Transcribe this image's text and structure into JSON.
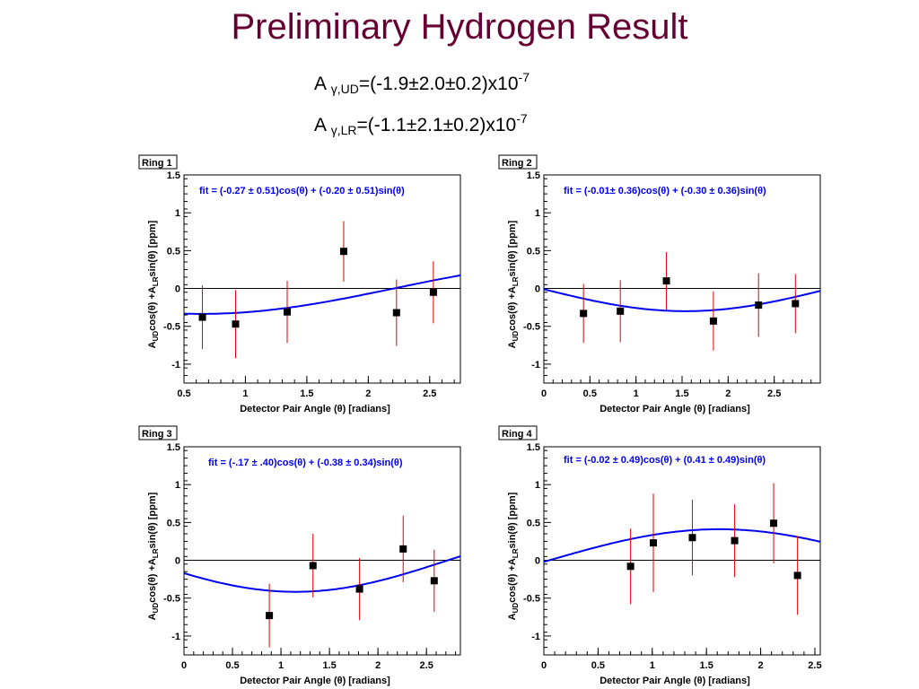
{
  "slide": {
    "title": "Preliminary Hydrogen Result",
    "results": [
      {
        "prefix": "A ",
        "sub": "γ,UD",
        "value": "=(-1.9±2.0±0.2)x10",
        "exp": "-7"
      },
      {
        "prefix": "A ",
        "sub": "γ,LR",
        "value": "=(-1.1±2.1±0.2)x10",
        "exp": "-7"
      }
    ]
  },
  "colors": {
    "points": "#000000",
    "error_bars": "#e00000",
    "fit_curve": "#0000ee",
    "fit_label": "#0000ee",
    "zero_line": "#000000"
  },
  "chart_data": [
    {
      "type": "scatter",
      "panel_label": "Ring 1",
      "fit_label": "fit = (-0.27 ± 0.51)cos(θ) + (-0.20 ± 0.51)sin(θ)",
      "fit": {
        "a": -0.27,
        "b": -0.2
      },
      "xlabel": "Detector Pair Angle (θ) [radians]",
      "ylabel": {
        "main": "A",
        "sub1": "UD",
        "mid": "cos(θ) +A",
        "sub2": "LR",
        "tail": "sin(θ) [ppm]"
      },
      "xlim": [
        0.5,
        2.75
      ],
      "ylim": [
        -1.25,
        1.5
      ],
      "xticks": [
        0.5,
        1,
        1.5,
        2,
        2.5
      ],
      "xtick_labels": [
        "0.5",
        "1",
        "1.5",
        "2",
        "2.5"
      ],
      "yticks": [
        -1,
        -0.5,
        0,
        0.5,
        1,
        1.5
      ],
      "ytick_labels": [
        "-1",
        "-0.5",
        "0",
        "0.5",
        "1",
        "1.5"
      ],
      "points": [
        {
          "x": 0.65,
          "y": -0.38,
          "err": 0.42
        },
        {
          "x": 0.92,
          "y": -0.47,
          "err": 0.45
        },
        {
          "x": 1.34,
          "y": -0.31,
          "err": 0.41
        },
        {
          "x": 1.8,
          "y": 0.49,
          "err": 0.4
        },
        {
          "x": 2.23,
          "y": -0.32,
          "err": 0.44
        },
        {
          "x": 2.53,
          "y": -0.05,
          "err": 0.41
        }
      ]
    },
    {
      "type": "scatter",
      "panel_label": "Ring 2",
      "fit_label": "fit = (-0.01± 0.36)cos(θ) + (-0.30 ± 0.36)sin(θ)",
      "fit": {
        "a": -0.01,
        "b": -0.3
      },
      "xlabel": "Detector Pair Angle (θ) [radians]",
      "ylabel": {
        "main": "A",
        "sub1": "UD",
        "mid": "cos(θ) +A",
        "sub2": "LR",
        "tail": "sin(θ) [ppm]"
      },
      "xlim": [
        0,
        3.0
      ],
      "ylim": [
        -1.25,
        1.5
      ],
      "xticks": [
        0,
        0.5,
        1,
        1.5,
        2,
        2.5
      ],
      "xtick_labels": [
        "0",
        "0.5",
        "1",
        "1.5",
        "2",
        "2.5"
      ],
      "yticks": [
        -1,
        -0.5,
        0,
        0.5,
        1,
        1.5
      ],
      "ytick_labels": [
        "-1",
        "-0.5",
        "0",
        "0.5",
        "1",
        "1.5"
      ],
      "points": [
        {
          "x": 0.43,
          "y": -0.33,
          "err": 0.39
        },
        {
          "x": 0.83,
          "y": -0.3,
          "err": 0.41
        },
        {
          "x": 1.33,
          "y": 0.1,
          "err": 0.38
        },
        {
          "x": 1.84,
          "y": -0.43,
          "err": 0.39
        },
        {
          "x": 2.33,
          "y": -0.22,
          "err": 0.42
        },
        {
          "x": 2.73,
          "y": -0.2,
          "err": 0.39
        }
      ]
    },
    {
      "type": "scatter",
      "panel_label": "Ring 3",
      "fit_label": "fit = (-.17 ± .40)cos(θ) + (-0.38 ± 0.34)sin(θ)",
      "fit": {
        "a": -0.17,
        "b": -0.38
      },
      "xlabel": "Detector Pair Angle (θ) [radians]",
      "ylabel": {
        "main": "A",
        "sub1": "UD",
        "mid": "cos(θ) +A",
        "sub2": "LR",
        "tail": "sin(θ) [ppm]"
      },
      "xlim": [
        0,
        2.85
      ],
      "ylim": [
        -1.25,
        1.5
      ],
      "xticks": [
        0,
        0.5,
        1,
        1.5,
        2,
        2.5
      ],
      "xtick_labels": [
        "0",
        "0.5",
        "1",
        "1.5",
        "2",
        "2.5"
      ],
      "yticks": [
        -1,
        -0.5,
        0,
        0.5,
        1,
        1.5
      ],
      "ytick_labels": [
        "-1",
        "-0.5",
        "0",
        "0.5",
        "1",
        "1.5"
      ],
      "points": [
        {
          "x": 0.88,
          "y": -0.73,
          "err": 0.42
        },
        {
          "x": 1.33,
          "y": -0.07,
          "err": 0.42
        },
        {
          "x": 1.81,
          "y": -0.38,
          "err": 0.41
        },
        {
          "x": 2.26,
          "y": 0.15,
          "err": 0.44
        },
        {
          "x": 2.58,
          "y": -0.27,
          "err": 0.41
        }
      ]
    },
    {
      "type": "scatter",
      "panel_label": "Ring 4",
      "fit_label": "fit = (-0.02 ± 0.49)cos(θ) + (0.41 ± 0.49)sin(θ)",
      "fit": {
        "a": -0.02,
        "b": 0.41
      },
      "xlabel": "Detector Pair Angle (θ) [radians]",
      "ylabel": {
        "main": "A",
        "sub1": "UD",
        "mid": "cos(θ) +A",
        "sub2": "LR",
        "tail": "sin(θ) [ppm]"
      },
      "xlim": [
        0,
        2.55
      ],
      "ylim": [
        -1.25,
        1.5
      ],
      "xticks": [
        0,
        0.5,
        1,
        1.5,
        2,
        2.5
      ],
      "xtick_labels": [
        "0",
        "0.5",
        "1",
        "1.5",
        "2",
        "2.5"
      ],
      "yticks": [
        -1,
        -0.5,
        0,
        0.5,
        1,
        1.5
      ],
      "ytick_labels": [
        "-1",
        "-0.5",
        "0",
        "0.5",
        "1",
        "1.5"
      ],
      "points": [
        {
          "x": 0.8,
          "y": -0.08,
          "err": 0.5
        },
        {
          "x": 1.01,
          "y": 0.23,
          "err": 0.65
        },
        {
          "x": 1.37,
          "y": 0.3,
          "err": 0.5
        },
        {
          "x": 1.76,
          "y": 0.26,
          "err": 0.48
        },
        {
          "x": 2.12,
          "y": 0.49,
          "err": 0.53
        },
        {
          "x": 2.34,
          "y": -0.2,
          "err": 0.52
        }
      ]
    }
  ]
}
